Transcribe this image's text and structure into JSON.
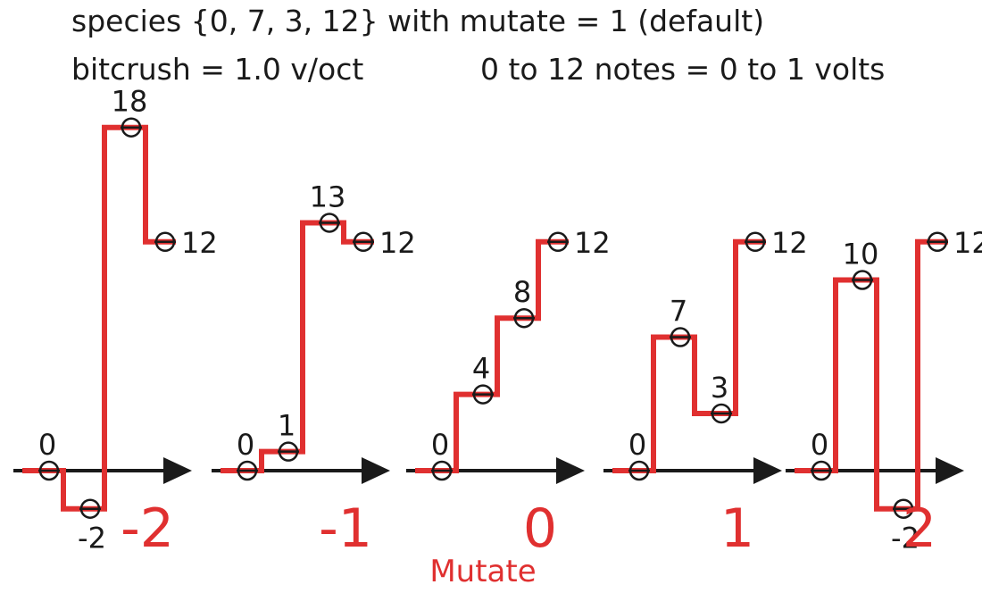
{
  "header": {
    "line1": "species {0, 7, 3, 12} with mutate = 1 (default)",
    "bitcrush": "bitcrush = 1.0 v/oct",
    "scale": "0 to 12 notes = 0 to 1 volts"
  },
  "xlabel": "Mutate",
  "colors": {
    "step": "#e03030",
    "axis": "#1a1a1a",
    "label": "#1a1a1a",
    "mutate": "#e03030"
  },
  "panels": [
    {
      "mutate": "-2",
      "values": [
        0,
        -2,
        18,
        12
      ],
      "labels": [
        "0",
        "-2",
        "18",
        "12"
      ]
    },
    {
      "mutate": "-1",
      "values": [
        0,
        1,
        13,
        12
      ],
      "labels": [
        "0",
        "1",
        "13",
        "12"
      ]
    },
    {
      "mutate": "0",
      "values": [
        0,
        4,
        8,
        12
      ],
      "labels": [
        "0",
        "4",
        "8",
        "12"
      ]
    },
    {
      "mutate": "1",
      "values": [
        0,
        7,
        3,
        12
      ],
      "labels": [
        "0",
        "7",
        "3",
        "12"
      ]
    },
    {
      "mutate": "2",
      "values": [
        0,
        10,
        -2,
        12
      ],
      "labels": [
        "0",
        "10",
        "-2",
        "12"
      ]
    }
  ]
}
